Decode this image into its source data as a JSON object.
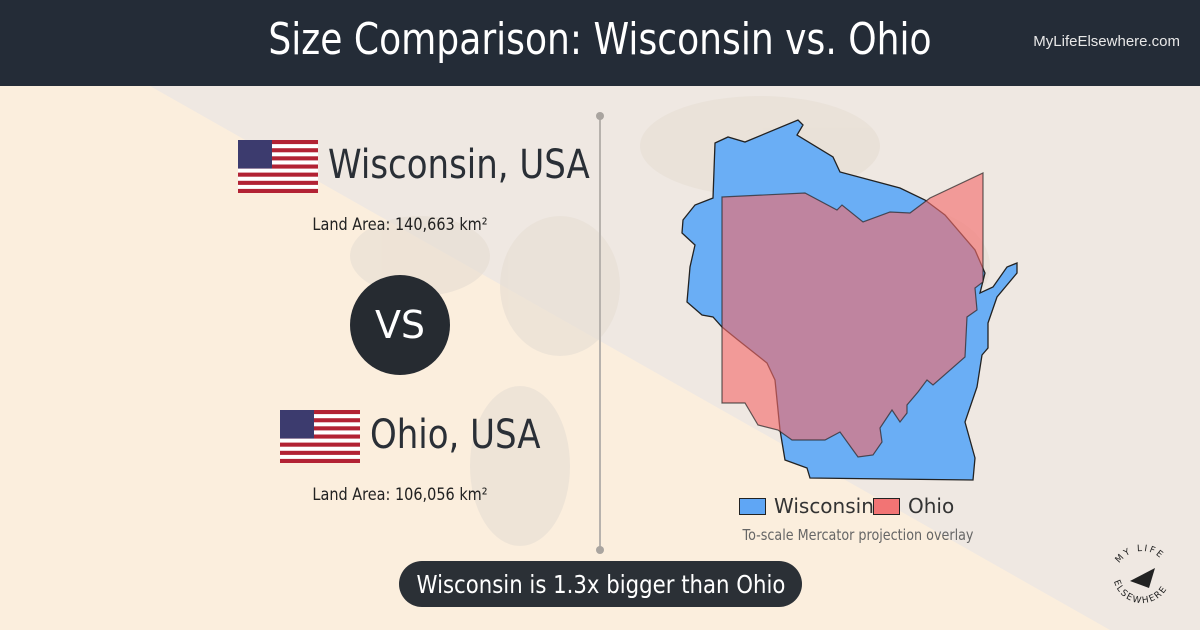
{
  "header": {
    "title": "Size Comparison: Wisconsin vs. Ohio",
    "site": "MyLifeElsewhere.com"
  },
  "place1": {
    "name": "Wisconsin, USA",
    "area": "Land Area: 140,663 km²"
  },
  "place2": {
    "name": "Ohio, USA",
    "area": "Land Area: 106,056 km²"
  },
  "vs_label": "VS",
  "legend": {
    "item1": "Wisconsin",
    "item2": "Ohio",
    "caption": "To-scale Mercator projection overlay"
  },
  "colors": {
    "wisconsin": "#5fa6f5",
    "ohio": "#f27474",
    "header": "#242c37"
  },
  "result": "Wisconsin is 1.3x bigger than Ohio",
  "logo_text": "MY LIFE ELSEWHERE"
}
